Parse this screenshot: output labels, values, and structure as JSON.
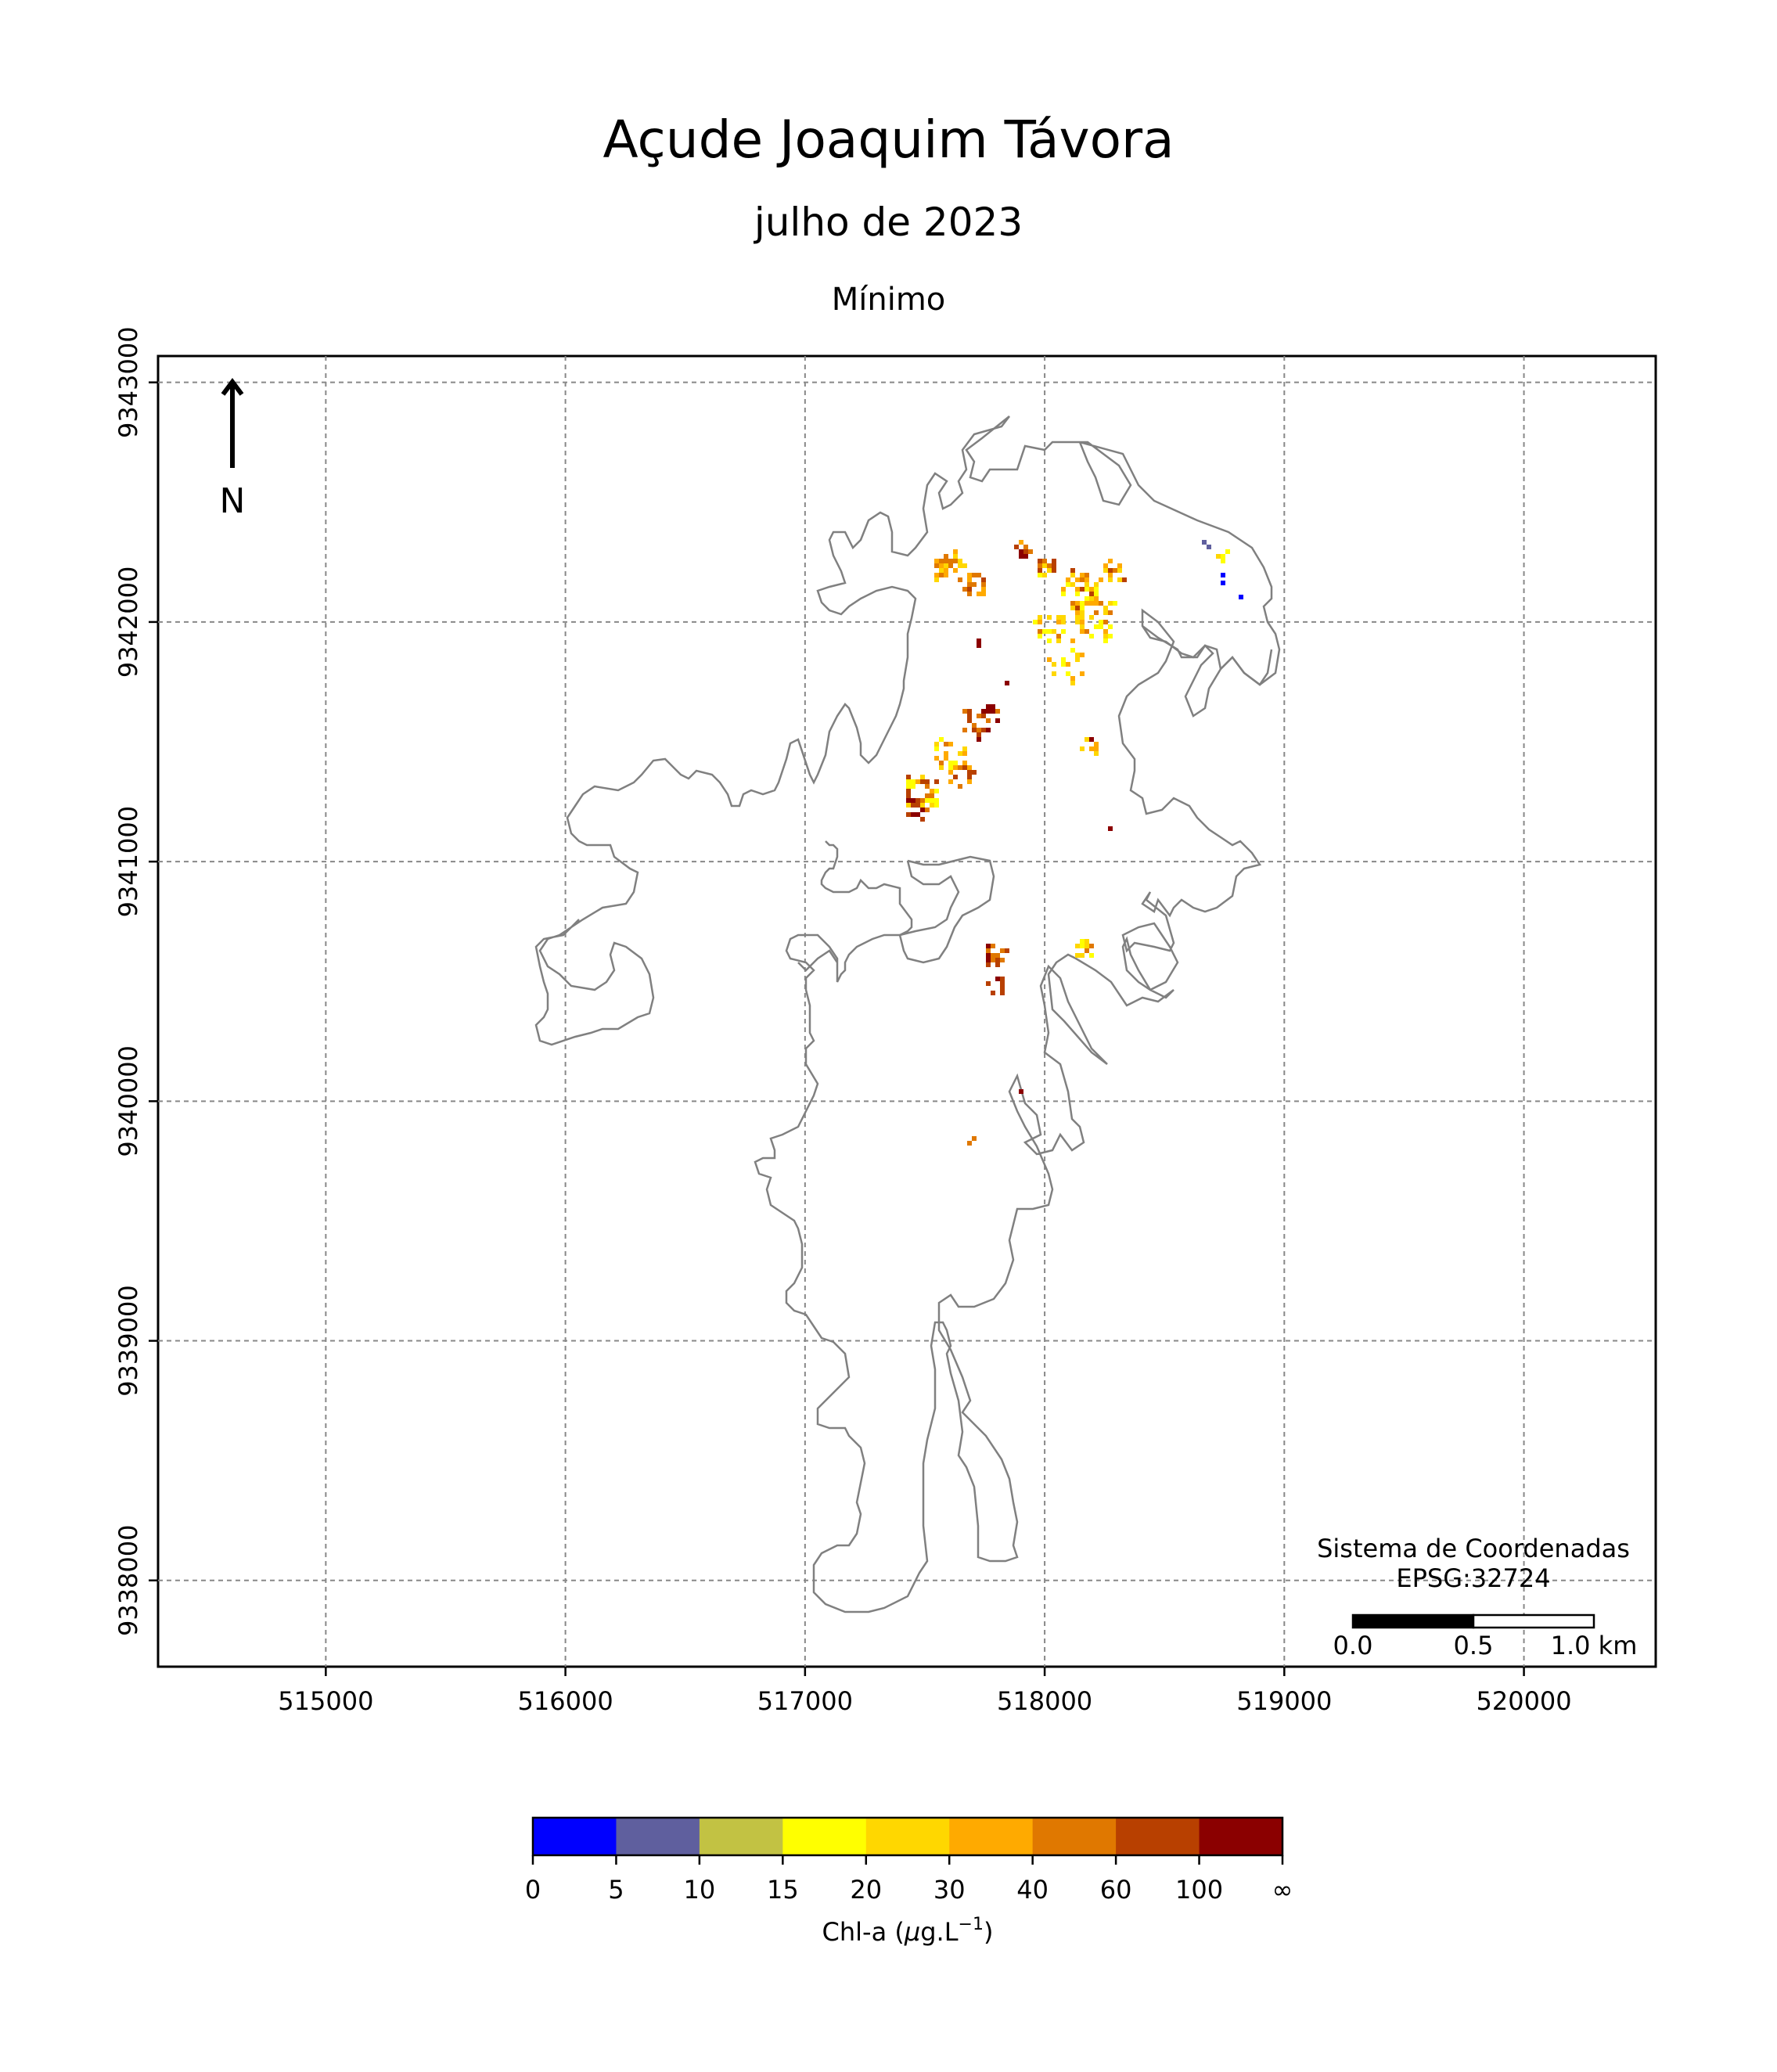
{
  "title": "Açude Joaquim Távora",
  "subtitle": "julho de 2023",
  "statistic": "Mínimo",
  "north_arrow": {
    "label": "N",
    "icon": "north-arrow-icon"
  },
  "crs_note": {
    "line1": "Sistema de Coordenadas",
    "line2": "EPSG:32724"
  },
  "scale_bar": {
    "labels": [
      "0.0",
      "0.5",
      "1.0 km"
    ]
  },
  "colorbar": {
    "label_main": "Chl-a (",
    "label_mu": "μ",
    "label_unit": "g.L",
    "label_exp": "−1",
    "label_close": ")",
    "bounds": [
      "0",
      "5",
      "10",
      "15",
      "20",
      "30",
      "40",
      "60",
      "100",
      "∞"
    ],
    "colors": [
      "#0000ff",
      "#5f5f9e",
      "#c2c243",
      "#ffff00",
      "#ffd700",
      "#ffaa00",
      "#e07800",
      "#b84000",
      "#8b0000"
    ]
  },
  "axes": {
    "x_ticks": [
      515000,
      516000,
      517000,
      518000,
      519000,
      520000
    ],
    "y_ticks": [
      9338000,
      9339000,
      9340000,
      9341000,
      9342000,
      9343000
    ],
    "xlim": [
      514300,
      520550
    ],
    "ylim": [
      9337640,
      9343110
    ],
    "grid": true,
    "grid_color": "#888888",
    "outline_color": "#808080"
  }
}
